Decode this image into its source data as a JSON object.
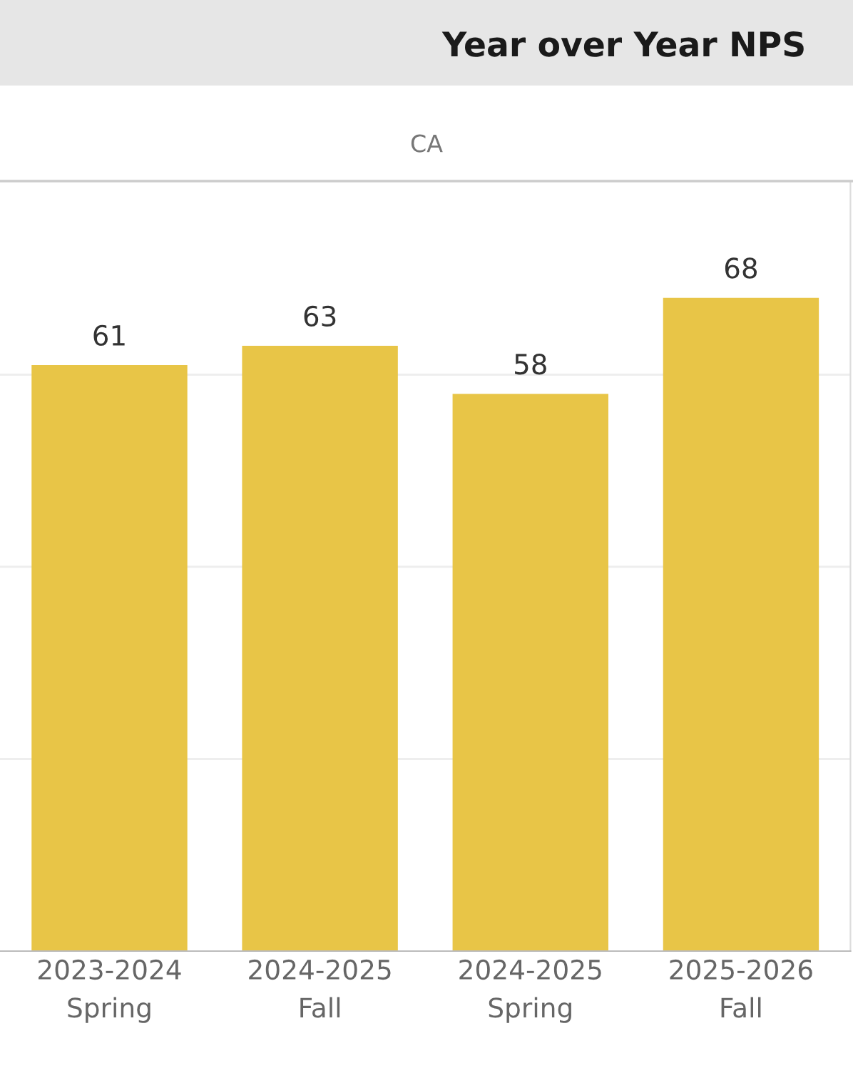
{
  "chart_data": {
    "type": "bar",
    "title": "Year over Year NPS",
    "subtitle": "CA",
    "categories": [
      "2023-2024\nSpring",
      "2024-2025\nFall",
      "2024-2025\nSpring",
      "2025-2026\nFall"
    ],
    "values": [
      61,
      63,
      58,
      68
    ],
    "color": "#e8c547",
    "ylim": [
      0,
      80
    ],
    "yticks": [
      {
        "value": 20,
        "label": null
      },
      {
        "value": 40,
        "label": null
      },
      {
        "value": 60,
        "label": null
      }
    ],
    "grid": "y",
    "data_labels": true,
    "tick_labels": "x"
  }
}
